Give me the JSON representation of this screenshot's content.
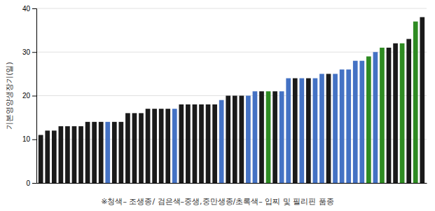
{
  "chart_data": {
    "type": "bar",
    "categories": [
      null,
      null,
      null,
      null,
      null,
      null,
      null,
      null,
      null,
      null,
      null,
      null,
      null,
      null,
      null,
      null,
      null,
      null,
      null,
      null,
      null,
      null,
      null,
      null,
      null,
      null,
      null,
      null,
      null,
      null,
      null,
      null,
      null,
      null,
      null,
      null,
      null,
      null,
      null,
      null,
      null,
      null,
      null,
      null,
      null,
      null,
      null,
      null,
      null,
      null,
      null,
      null,
      null,
      null,
      null,
      null,
      null,
      null
    ],
    "values": [
      11,
      12,
      12,
      13,
      13,
      13,
      13,
      14,
      14,
      14,
      14,
      14,
      14,
      16,
      16,
      16,
      17,
      17,
      17,
      17,
      17,
      18,
      18,
      18,
      18,
      18,
      18,
      19,
      20,
      20,
      20,
      20,
      21,
      21,
      21,
      21,
      21,
      24,
      24,
      24,
      24,
      24,
      25,
      25,
      25,
      26,
      26,
      28,
      28,
      29,
      30,
      31,
      31,
      32,
      32,
      33,
      37,
      38
    ],
    "colors": [
      "#1a1a1a",
      "#1a1a1a",
      "#1a1a1a",
      "#1a1a1a",
      "#1a1a1a",
      "#1a1a1a",
      "#1a1a1a",
      "#1a1a1a",
      "#1a1a1a",
      "#1a1a1a",
      "#4472c4",
      "#1a1a1a",
      "#1a1a1a",
      "#1a1a1a",
      "#1a1a1a",
      "#1a1a1a",
      "#1a1a1a",
      "#1a1a1a",
      "#1a1a1a",
      "#1a1a1a",
      "#4472c4",
      "#1a1a1a",
      "#1a1a1a",
      "#1a1a1a",
      "#1a1a1a",
      "#1a1a1a",
      "#1a1a1a",
      "#4472c4",
      "#1a1a1a",
      "#1a1a1a",
      "#1a1a1a",
      "#4472c4",
      "#4472c4",
      "#1a1a1a",
      "#2e8b22",
      "#1a1a1a",
      "#4472c4",
      "#4472c4",
      "#1a1a1a",
      "#4472c4",
      "#1a1a1a",
      "#4472c4",
      "#4472c4",
      "#1a1a1a",
      "#4472c4",
      "#4472c4",
      "#4472c4",
      "#4472c4",
      "#4472c4",
      "#2e8b22",
      "#4472c4",
      "#2e8b22",
      "#1a1a1a",
      "#1a1a1a",
      "#2e8b22",
      "#1a1a1a",
      "#2e8b22",
      "#1a1a1a"
    ],
    "y_label": "기본영양생장기(일)",
    "annotations": [
      "※청색– 조생종/ 검은색–중생,중만생종/초록색– 입찌 및 필리핀 품종"
    ],
    "ylim": [
      0,
      40
    ],
    "yticks": [
      0,
      10,
      20,
      30,
      40
    ],
    "grid": true,
    "tick_labels": "y"
  }
}
